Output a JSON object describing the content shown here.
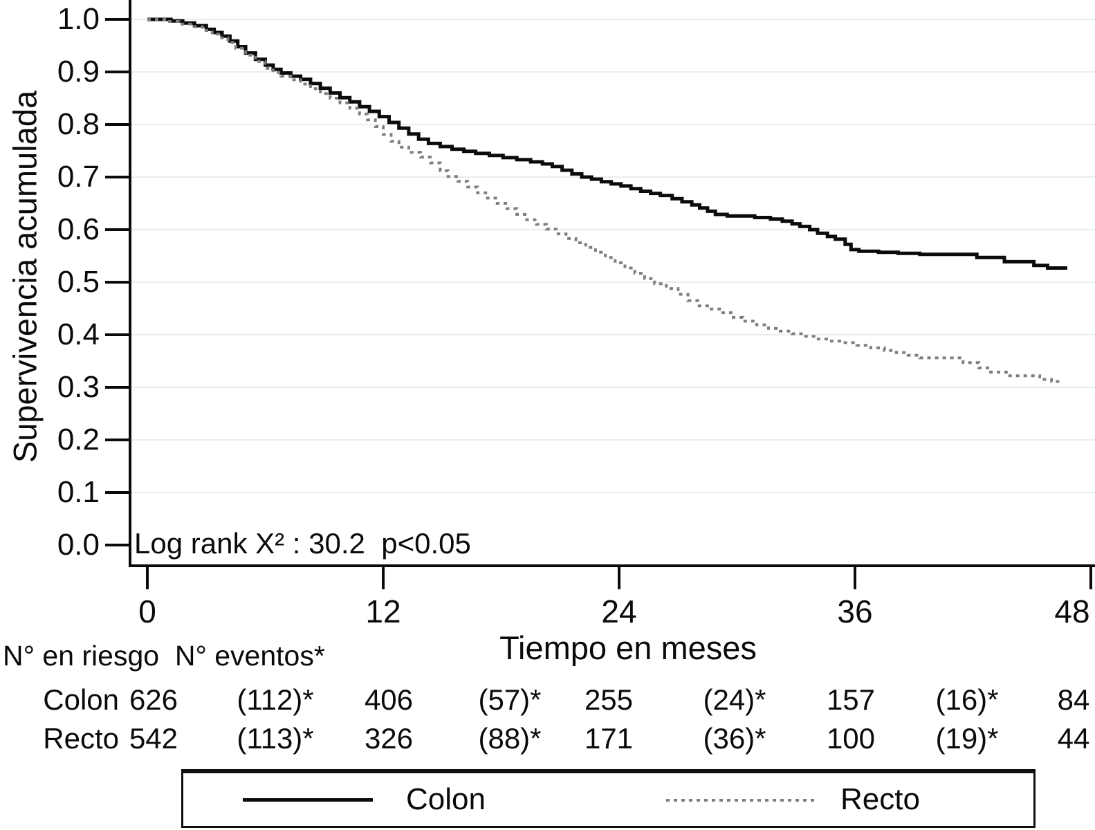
{
  "chart_data": {
    "type": "line",
    "subtype": "kaplan-meier-step-curves",
    "title": "",
    "ylabel": "Supervivencia acumulada",
    "xlabel": "Tiempo en meses",
    "annotation": "Log rank X² : 30.2  p<0.05",
    "xlim": [
      0,
      48
    ],
    "ylim": [
      0.0,
      1.0
    ],
    "grid": true,
    "x_ticks": [
      0,
      12,
      24,
      36,
      48
    ],
    "y_ticks": [
      "1.0",
      "0.9",
      "0.8",
      "0.7",
      "0.6",
      "0.5",
      "0.4",
      "0.3",
      "0.2",
      "0.1",
      "0.0"
    ],
    "legend": {
      "position": "bottom",
      "items": [
        {
          "label": "Colon",
          "style": "solid"
        },
        {
          "label": "Recto",
          "style": "dashed"
        }
      ]
    },
    "series": [
      {
        "name": "Colon",
        "style": "solid",
        "color": "#0b0b0b",
        "points": [
          [
            0,
            1.0
          ],
          [
            1.2,
            0.997
          ],
          [
            1.8,
            0.993
          ],
          [
            2.4,
            0.988
          ],
          [
            3.0,
            0.981
          ],
          [
            3.4,
            0.975
          ],
          [
            3.8,
            0.968
          ],
          [
            4.2,
            0.959
          ],
          [
            4.6,
            0.948
          ],
          [
            5.0,
            0.936
          ],
          [
            5.5,
            0.924
          ],
          [
            6.0,
            0.913
          ],
          [
            6.4,
            0.905
          ],
          [
            6.8,
            0.898
          ],
          [
            7.3,
            0.892
          ],
          [
            7.8,
            0.886
          ],
          [
            8.3,
            0.878
          ],
          [
            8.8,
            0.869
          ],
          [
            9.3,
            0.86
          ],
          [
            9.8,
            0.851
          ],
          [
            10.3,
            0.843
          ],
          [
            10.8,
            0.834
          ],
          [
            11.3,
            0.825
          ],
          [
            11.8,
            0.815
          ],
          [
            12.3,
            0.804
          ],
          [
            12.8,
            0.793
          ],
          [
            13.3,
            0.782
          ],
          [
            13.8,
            0.772
          ],
          [
            14.3,
            0.764
          ],
          [
            14.9,
            0.758
          ],
          [
            15.5,
            0.753
          ],
          [
            16.1,
            0.749
          ],
          [
            16.7,
            0.745
          ],
          [
            17.4,
            0.741
          ],
          [
            18.1,
            0.737
          ],
          [
            18.8,
            0.733
          ],
          [
            19.5,
            0.729
          ],
          [
            20.1,
            0.725
          ],
          [
            20.6,
            0.72
          ],
          [
            21.1,
            0.713
          ],
          [
            21.6,
            0.706
          ],
          [
            22.1,
            0.7
          ],
          [
            22.6,
            0.696
          ],
          [
            23.1,
            0.691
          ],
          [
            23.6,
            0.687
          ],
          [
            24.1,
            0.683
          ],
          [
            24.6,
            0.678
          ],
          [
            25.1,
            0.673
          ],
          [
            25.6,
            0.669
          ],
          [
            26.1,
            0.665
          ],
          [
            26.7,
            0.659
          ],
          [
            27.2,
            0.653
          ],
          [
            27.7,
            0.647
          ],
          [
            28.1,
            0.641
          ],
          [
            28.5,
            0.635
          ],
          [
            28.9,
            0.629
          ],
          [
            29.5,
            0.626
          ],
          [
            30.9,
            0.623
          ],
          [
            31.7,
            0.62
          ],
          [
            32.3,
            0.616
          ],
          [
            32.8,
            0.611
          ],
          [
            33.2,
            0.606
          ],
          [
            33.7,
            0.6
          ],
          [
            34.1,
            0.593
          ],
          [
            34.6,
            0.587
          ],
          [
            35.0,
            0.582
          ],
          [
            35.5,
            0.572
          ],
          [
            35.8,
            0.562
          ],
          [
            36.2,
            0.559
          ],
          [
            37.2,
            0.557
          ],
          [
            38.2,
            0.555
          ],
          [
            39.3,
            0.553
          ],
          [
            42.2,
            0.547
          ],
          [
            43.6,
            0.539
          ],
          [
            45.1,
            0.532
          ],
          [
            45.8,
            0.527
          ],
          [
            46.8,
            0.527
          ]
        ]
      },
      {
        "name": "Recto",
        "style": "dashed",
        "color": "#7e7e7e",
        "points": [
          [
            0,
            1.0
          ],
          [
            1.0,
            0.996
          ],
          [
            1.6,
            0.991
          ],
          [
            2.2,
            0.986
          ],
          [
            2.8,
            0.979
          ],
          [
            3.3,
            0.972
          ],
          [
            3.7,
            0.965
          ],
          [
            4.1,
            0.956
          ],
          [
            4.5,
            0.945
          ],
          [
            5.0,
            0.932
          ],
          [
            5.5,
            0.92
          ],
          [
            6.0,
            0.907
          ],
          [
            6.4,
            0.899
          ],
          [
            6.8,
            0.892
          ],
          [
            7.3,
            0.885
          ],
          [
            7.8,
            0.877
          ],
          [
            8.3,
            0.868
          ],
          [
            8.8,
            0.859
          ],
          [
            9.3,
            0.85
          ],
          [
            9.8,
            0.841
          ],
          [
            10.3,
            0.831
          ],
          [
            10.8,
            0.82
          ],
          [
            11.2,
            0.809
          ],
          [
            11.6,
            0.796
          ],
          [
            12.0,
            0.781
          ],
          [
            12.4,
            0.768
          ],
          [
            12.8,
            0.757
          ],
          [
            13.3,
            0.747
          ],
          [
            13.9,
            0.738
          ],
          [
            14.4,
            0.727
          ],
          [
            14.9,
            0.712
          ],
          [
            15.3,
            0.701
          ],
          [
            15.8,
            0.692
          ],
          [
            16.3,
            0.681
          ],
          [
            16.8,
            0.67
          ],
          [
            17.3,
            0.66
          ],
          [
            17.8,
            0.65
          ],
          [
            18.3,
            0.64
          ],
          [
            18.8,
            0.629
          ],
          [
            19.3,
            0.619
          ],
          [
            19.8,
            0.61
          ],
          [
            20.3,
            0.601
          ],
          [
            20.8,
            0.592
          ],
          [
            21.3,
            0.583
          ],
          [
            21.8,
            0.575
          ],
          [
            22.3,
            0.566
          ],
          [
            22.8,
            0.557
          ],
          [
            23.3,
            0.547
          ],
          [
            23.8,
            0.537
          ],
          [
            24.3,
            0.527
          ],
          [
            24.8,
            0.517
          ],
          [
            25.3,
            0.507
          ],
          [
            25.8,
            0.497
          ],
          [
            26.4,
            0.488
          ],
          [
            27.0,
            0.477
          ],
          [
            27.5,
            0.465
          ],
          [
            28.0,
            0.455
          ],
          [
            28.6,
            0.449
          ],
          [
            29.2,
            0.442
          ],
          [
            29.7,
            0.433
          ],
          [
            30.3,
            0.426
          ],
          [
            31.0,
            0.419
          ],
          [
            31.6,
            0.412
          ],
          [
            32.2,
            0.407
          ],
          [
            32.8,
            0.402
          ],
          [
            33.4,
            0.397
          ],
          [
            34.0,
            0.392
          ],
          [
            34.7,
            0.388
          ],
          [
            35.4,
            0.385
          ],
          [
            36.1,
            0.38
          ],
          [
            36.8,
            0.375
          ],
          [
            37.5,
            0.37
          ],
          [
            38.1,
            0.366
          ],
          [
            38.7,
            0.361
          ],
          [
            39.3,
            0.356
          ],
          [
            41.5,
            0.347
          ],
          [
            42.3,
            0.337
          ],
          [
            42.9,
            0.329
          ],
          [
            43.7,
            0.322
          ],
          [
            45.4,
            0.315
          ],
          [
            46.0,
            0.311
          ],
          [
            46.6,
            0.311
          ]
        ]
      }
    ],
    "risk_table": {
      "header": "N° en riesgo  N° eventos*",
      "rows": [
        {
          "label": "Colon",
          "values": [
            "626",
            "(112)*",
            "406",
            "(57)*",
            "255",
            "(24)*",
            "157",
            "(16)*",
            "84"
          ]
        },
        {
          "label": "Recto",
          "values": [
            "542",
            "(113)*",
            "326",
            "(88)*",
            "171",
            "(36)*",
            "100",
            "(19)*",
            "44"
          ]
        }
      ]
    }
  },
  "colors": {
    "curve_colon": "#0b0b0b",
    "curve_recto": "#7e7e7e",
    "gridline": "#e6eeee",
    "axis": "#0a0a0a",
    "background": "#ffffff"
  },
  "layout_values": {
    "x_tick_label_centers": [
      213,
      554,
      895,
      1236,
      1550
    ],
    "risk_col_centers": [
      222,
      398,
      562,
      737,
      880,
      1062,
      1230,
      1398,
      1552
    ],
    "risk_row_centers": [
      1012,
      1068
    ]
  }
}
